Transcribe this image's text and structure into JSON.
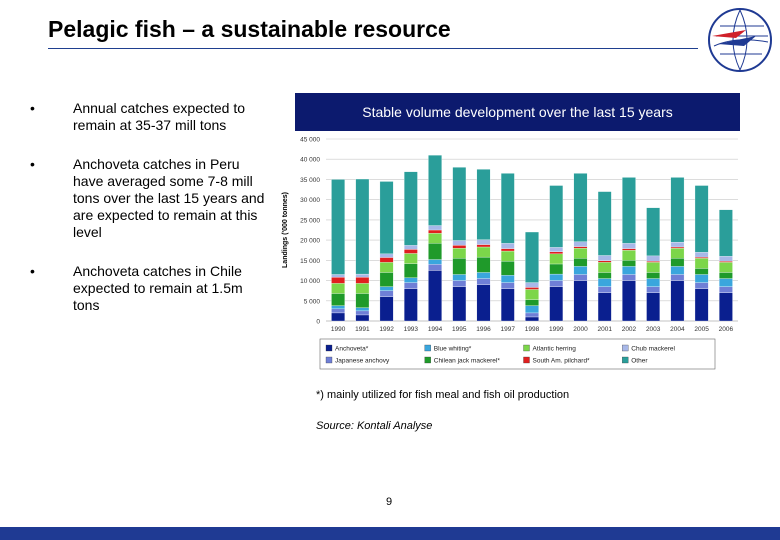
{
  "slide": {
    "title": "Pelagic fish – a sustainable resource",
    "banner": "Stable volume development over the last 15 years",
    "bullets": [
      {
        "marker": "•",
        "text": "Annual catches expected to remain at 35-37 mill tons"
      },
      {
        "marker": "•",
        "text": "Anchoveta catches in Peru have averaged some 7-8 mill tons over the last 15 years and are expected to remain at this level"
      },
      {
        "marker": "•",
        "text": "Anchoveta catches in Chile expected to remain at 1.5m tons"
      }
    ],
    "note": "*) mainly utilized for fish meal and fish oil production",
    "source": "Source: Kontali Analyse",
    "page_number": "9",
    "colors": {
      "banner": "#0c1a6e",
      "footer_bar": "#1f3a93",
      "title_rule": "#1f3f8f"
    }
  },
  "chart_data": {
    "type": "bar",
    "stacked": true,
    "ylabel": "Landings ('000 tonnes)",
    "xlabel": "",
    "ylim": [
      0,
      45000
    ],
    "yticks": [
      0,
      5000,
      10000,
      15000,
      20000,
      25000,
      30000,
      35000,
      40000,
      45000
    ],
    "ytick_labels": [
      "0",
      "5 000",
      "10 000",
      "15 000",
      "20 000",
      "25 000",
      "30 000",
      "35 000",
      "40 000",
      "45 000"
    ],
    "grid": true,
    "legend_position": "bottom",
    "categories": [
      "1990",
      "1991",
      "1992",
      "1993",
      "1994",
      "1995",
      "1996",
      "1997",
      "1998",
      "1999",
      "2000",
      "2001",
      "2002",
      "2003",
      "2004",
      "2005",
      "2006"
    ],
    "series": [
      {
        "name": "Anchoveta*",
        "color": "#0a1f8f",
        "values": [
          2000,
          1500,
          6000,
          8000,
          12500,
          8500,
          9000,
          8000,
          1000,
          8500,
          10000,
          7000,
          10000,
          7000,
          10000,
          8000,
          7000
        ]
      },
      {
        "name": "Japanese anchovy",
        "color": "#6f7fd6",
        "values": [
          1000,
          1000,
          1500,
          1500,
          1500,
          1500,
          1500,
          1500,
          1000,
          1500,
          1500,
          1500,
          1500,
          1500,
          1500,
          1500,
          1500
        ]
      },
      {
        "name": "Blue whiting*",
        "color": "#3aa6dd",
        "values": [
          800,
          800,
          1000,
          1200,
          1200,
          1500,
          1500,
          1800,
          1800,
          1600,
          2000,
          2000,
          2000,
          2000,
          2000,
          2000,
          2000
        ]
      },
      {
        "name": "Chilean jack mackerel*",
        "color": "#1f9a2a",
        "values": [
          3000,
          3500,
          3500,
          3500,
          4000,
          4000,
          3800,
          3500,
          1500,
          2500,
          2000,
          1500,
          1500,
          1500,
          2000,
          1500,
          1500
        ]
      },
      {
        "name": "Atlantic herring",
        "color": "#7cd64a",
        "values": [
          2500,
          2500,
          2500,
          2500,
          2500,
          2500,
          2500,
          2500,
          2500,
          2500,
          2500,
          2500,
          2500,
          2500,
          2500,
          2500,
          2500
        ]
      },
      {
        "name": "South Am. pilchard*",
        "color": "#e01f1f",
        "values": [
          1500,
          1500,
          1200,
          1000,
          800,
          700,
          600,
          600,
          500,
          500,
          400,
          400,
          400,
          300,
          300,
          300,
          300
        ]
      },
      {
        "name": "Chub mackerel",
        "color": "#a8b8e8",
        "values": [
          700,
          800,
          900,
          1000,
          1100,
          1200,
          1200,
          1300,
          1200,
          1100,
          1200,
          1300,
          1300,
          1300,
          1200,
          1200,
          1200
        ]
      },
      {
        "name": "Other",
        "color": "#2a9e9a",
        "values": [
          23500,
          23500,
          17900,
          18200,
          17400,
          18100,
          17400,
          17300,
          12500,
          15300,
          16900,
          15800,
          16300,
          11900,
          16000,
          16500,
          11500
        ]
      }
    ],
    "legend_order": [
      "Anchoveta*",
      "Blue whiting*",
      "Atlantic herring",
      "Chub mackerel",
      "Japanese anchovy",
      "Chilean jack mackerel*",
      "South Am. pilchard*",
      "Other"
    ]
  }
}
